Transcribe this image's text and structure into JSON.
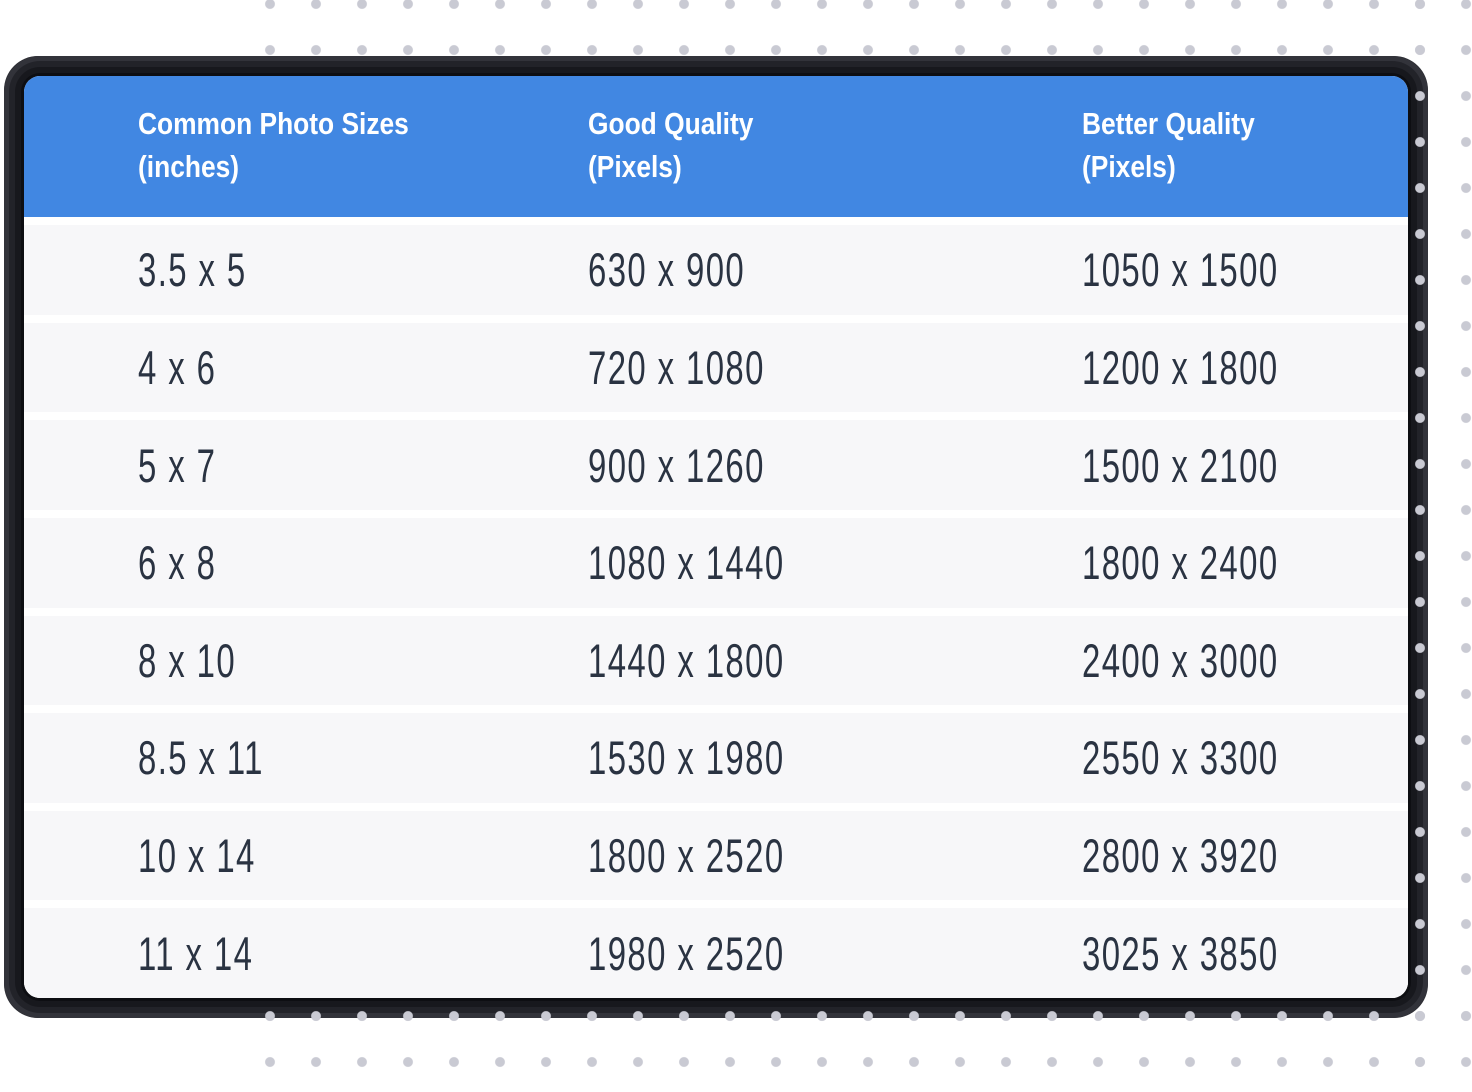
{
  "colors": {
    "accent": "#4187e2",
    "header_text": "#ffffff",
    "row_bg": "#f7f7f9",
    "row_text": "#2a3342",
    "separator": "#ffffff",
    "bezel": "#2a2b31",
    "dots": "#c9cad3"
  },
  "table": {
    "header": {
      "columns": [
        {
          "title": "Common Photo Sizes",
          "sub": "(inches)"
        },
        {
          "title": "Good Quality",
          "sub": "(Pixels)"
        },
        {
          "title": "Better Quality",
          "sub": "(Pixels)"
        }
      ]
    },
    "rows": [
      {
        "size": "3.5 x 5",
        "good": "630 x 900",
        "better": "1050 x 1500"
      },
      {
        "size": "4 x 6",
        "good": "720 x 1080",
        "better": "1200 x 1800"
      },
      {
        "size": "5 x 7",
        "good": "900 x 1260",
        "better": "1500 x 2100"
      },
      {
        "size": "6 x 8",
        "good": "1080 x 1440",
        "better": "1800 x 2400"
      },
      {
        "size": "8 x 10",
        "good": "1440 x 1800",
        "better": "2400 x 3000"
      },
      {
        "size": "8.5 x 11",
        "good": "1530 x 1980",
        "better": "2550 x 3300"
      },
      {
        "size": "10 x 14",
        "good": "1800 x 2520",
        "better": "2800 x 3920"
      },
      {
        "size": "11 x 14",
        "good": "1980 x 2520",
        "better": "3025 x 3850"
      }
    ]
  }
}
